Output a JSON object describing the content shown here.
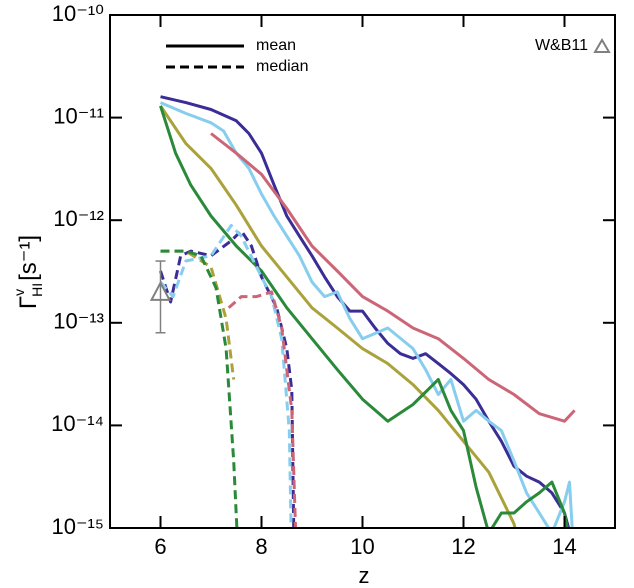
{
  "chart_data": {
    "type": "line",
    "xlabel": "z",
    "ylabel": {
      "symbol": "Γ",
      "superscript": "v",
      "subscript": "HI",
      "unit": "[s⁻¹]"
    },
    "xlim": [
      5,
      15
    ],
    "ylim": [
      1e-15,
      1e-10
    ],
    "log_y": true,
    "xticks": [
      6,
      8,
      10,
      12,
      14
    ],
    "yticks": [
      {
        "value": 1e-10,
        "label": "10⁻¹⁰"
      },
      {
        "value": 1e-11,
        "label": "10⁻¹¹"
      },
      {
        "value": 1e-12,
        "label": "10⁻¹²"
      },
      {
        "value": 1e-13,
        "label": "10⁻¹³"
      },
      {
        "value": 1e-14,
        "label": "10⁻¹⁴"
      },
      {
        "value": 1e-15,
        "label": "10⁻¹⁵"
      }
    ],
    "legend": [
      {
        "label": "mean",
        "dash": "solid"
      },
      {
        "label": "median",
        "dash": "dashed"
      }
    ],
    "series": [
      {
        "color": "#3a2d96",
        "dash": "solid",
        "x": [
          6,
          6.5,
          7,
          7.5,
          7.75,
          8,
          8.25,
          8.5,
          8.75,
          9,
          9.25,
          9.5,
          9.75,
          10,
          10.25,
          10.5,
          10.75,
          11,
          11.25,
          11.5,
          11.75,
          12,
          12.25,
          12.5,
          12.75,
          13,
          13.25,
          13.5,
          13.75,
          14,
          14.3
        ],
        "values": [
          1.6e-11,
          1.4e-11,
          1.2e-11,
          9.3e-12,
          7e-12,
          4.5e-12,
          2.2e-12,
          1.1e-12,
          7e-13,
          4.5e-13,
          2.8e-13,
          1.8e-13,
          1.3e-13,
          1.3e-13,
          8.9e-14,
          6.3e-14,
          5e-14,
          4.5e-14,
          5e-14,
          4e-14,
          3.2e-14,
          2.5e-14,
          1.8e-14,
          1.1e-14,
          7e-15,
          4e-15,
          3.2e-15,
          2.8e-15,
          2.2e-15,
          1.4e-15,
          4e-16
        ]
      },
      {
        "color": "#87cdee",
        "dash": "solid",
        "x": [
          6,
          6.5,
          7,
          7.25,
          7.5,
          7.75,
          8,
          8.25,
          8.5,
          8.75,
          9,
          9.25,
          9.5,
          9.75,
          10,
          10.5,
          11,
          11.25,
          11.5,
          11.75,
          12,
          12.25,
          12.5,
          12.75,
          13,
          13.25,
          13.5,
          13.75,
          14,
          14.1,
          14.2
        ],
        "values": [
          1.4e-11,
          1.1e-11,
          8.9e-12,
          7.4e-12,
          4.5e-12,
          3.2e-12,
          1.8e-12,
          1.1e-12,
          7e-13,
          4.5e-13,
          2.5e-13,
          1.8e-13,
          2e-13,
          1.1e-13,
          7e-14,
          8.9e-14,
          5.6e-14,
          3.5e-14,
          2e-14,
          2.8e-14,
          1.1e-14,
          1.4e-14,
          1.1e-14,
          8.9e-15,
          4.5e-15,
          2.2e-15,
          1.4e-15,
          8.9e-16,
          1.8e-15,
          2.8e-15,
          4e-16
        ]
      },
      {
        "color": "#cc6677",
        "dash": "solid",
        "x": [
          7,
          7.5,
          8,
          8.5,
          9,
          9.5,
          10,
          10.5,
          11,
          11.5,
          12,
          12.5,
          13,
          13.5,
          14,
          14.2
        ],
        "values": [
          7e-12,
          4.5e-12,
          2.8e-12,
          1.3e-12,
          5.6e-13,
          3.2e-13,
          1.8e-13,
          1.3e-13,
          8.9e-14,
          7e-14,
          4.5e-14,
          2.8e-14,
          2e-14,
          1.3e-14,
          1.1e-14,
          1.4e-14
        ]
      },
      {
        "color": "#aaa23a",
        "dash": "solid",
        "x": [
          6,
          6.5,
          7,
          7.5,
          8,
          8.5,
          9,
          9.5,
          10,
          10.5,
          11,
          11.5,
          12,
          12.5,
          13,
          13.2
        ],
        "values": [
          1.3e-11,
          5.6e-12,
          3.2e-12,
          1.4e-12,
          5.6e-13,
          2.8e-13,
          1.4e-13,
          8.9e-14,
          5.6e-14,
          4e-14,
          2.5e-14,
          1.4e-14,
          7e-15,
          3.5e-15,
          1.1e-15,
          4e-16
        ]
      },
      {
        "color": "#2a8a3a",
        "dash": "solid",
        "x": [
          6,
          6.3,
          6.6,
          7,
          7.5,
          8,
          8.5,
          9,
          9.5,
          10,
          10.5,
          11,
          11.5,
          11.75,
          12,
          12.25,
          12.5,
          12.75,
          13,
          13.25,
          13.5,
          13.75,
          14,
          14.2
        ],
        "values": [
          1.3e-11,
          4.5e-12,
          2.2e-12,
          1.1e-12,
          5.6e-13,
          3.2e-13,
          1.4e-13,
          7e-14,
          3.5e-14,
          1.8e-14,
          1.1e-14,
          1.6e-14,
          2.8e-14,
          1.4e-14,
          8.9e-15,
          2.5e-15,
          8.9e-16,
          1.4e-15,
          1.4e-15,
          1.8e-15,
          2.2e-15,
          2.8e-15,
          1.4e-15,
          4e-16
        ]
      },
      {
        "color": "#3a2d96",
        "dash": "dashed",
        "x": [
          6,
          6.2,
          6.4,
          6.6,
          7,
          7.4,
          7.6,
          7.8,
          8,
          8.3,
          8.5,
          8.6,
          8.65
        ],
        "values": [
          3.2e-13,
          1.6e-13,
          4.5e-13,
          5e-13,
          4.5e-13,
          6.3e-13,
          7.9e-13,
          5.6e-13,
          2.8e-13,
          1.4e-13,
          5.6e-14,
          2.2e-14,
          4e-16
        ]
      },
      {
        "color": "#87cdee",
        "dash": "dashed",
        "x": [
          6,
          6.25,
          6.5,
          7,
          7.4,
          7.6,
          7.9,
          8.2,
          8.4,
          8.55,
          8.6
        ],
        "values": [
          2.5e-13,
          1.8e-13,
          4e-13,
          4.5e-13,
          8.9e-13,
          7e-13,
          3.5e-13,
          1.8e-13,
          7e-14,
          8.9e-15,
          4e-16
        ]
      },
      {
        "color": "#cc6677",
        "dash": "dashed",
        "x": [
          7.35,
          7.6,
          7.9,
          8.2,
          8.4,
          8.6,
          8.7
        ],
        "values": [
          1.4e-13,
          1.8e-13,
          1.8e-13,
          2e-13,
          8.9e-14,
          1.4e-14,
          4e-16
        ]
      },
      {
        "color": "#aaa23a",
        "dash": "dashed",
        "x": [
          6,
          6.5,
          7,
          7.3,
          7.45
        ],
        "values": [
          5e-13,
          5e-13,
          3.5e-13,
          1.1e-13,
          2.8e-14
        ]
      },
      {
        "color": "#2a8a3a",
        "dash": "dashed",
        "x": [
          6,
          6.5,
          6.8,
          7.1,
          7.3,
          7.45,
          7.55
        ],
        "values": [
          5e-13,
          5e-13,
          4.5e-13,
          2.2e-13,
          5.6e-14,
          4.5e-15,
          4e-16
        ]
      }
    ],
    "observation": {
      "label": "W&B11",
      "color": "#808080",
      "x": 6,
      "value": 2e-13,
      "lower": 8e-14,
      "upper": 4e-13
    }
  }
}
